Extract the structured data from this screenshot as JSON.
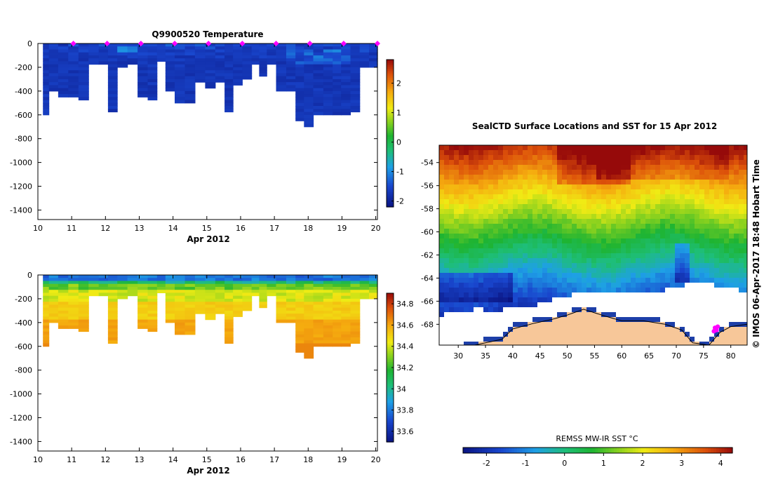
{
  "chart_data": [
    {
      "type": "heatmap",
      "title": "Q9900520  Temperature",
      "xlabel": "Apr 2012",
      "xlim": [
        10,
        20.05
      ],
      "ylim": [
        -1480,
        0
      ],
      "xticks": [
        10,
        11,
        12,
        13,
        14,
        15,
        16,
        17,
        18,
        19,
        20
      ],
      "yticks": [
        0,
        -200,
        -400,
        -600,
        -800,
        -1000,
        -1200,
        -1400
      ],
      "colorbar": {
        "range": [
          -2.2,
          2.8
        ],
        "ticks": [
          2,
          1,
          0,
          -1,
          -2
        ]
      },
      "surface_markers_day": [
        11.05,
        12.05,
        13.05,
        14.05,
        15.05,
        16.05,
        17.05,
        18.05,
        19.05,
        20.05
      ],
      "profiles": [
        {
          "day": 10.2,
          "depth": 590
        },
        {
          "day": 10.45,
          "depth": 400
        },
        {
          "day": 10.75,
          "depth": 450
        },
        {
          "day": 11.05,
          "depth": 440
        },
        {
          "day": 11.35,
          "depth": 475
        },
        {
          "day": 11.65,
          "depth": 160
        },
        {
          "day": 11.95,
          "depth": 160
        },
        {
          "day": 12.2,
          "depth": 570
        },
        {
          "day": 12.5,
          "depth": 180
        },
        {
          "day": 12.8,
          "depth": 170
        },
        {
          "day": 13.1,
          "depth": 440
        },
        {
          "day": 13.4,
          "depth": 470
        },
        {
          "day": 13.65,
          "depth": 140
        },
        {
          "day": 13.9,
          "depth": 400
        },
        {
          "day": 14.2,
          "depth": 490
        },
        {
          "day": 14.5,
          "depth": 490
        },
        {
          "day": 14.8,
          "depth": 320
        },
        {
          "day": 15.1,
          "depth": 360
        },
        {
          "day": 15.4,
          "depth": 310
        },
        {
          "day": 15.65,
          "depth": 570
        },
        {
          "day": 15.9,
          "depth": 330
        },
        {
          "day": 16.2,
          "depth": 300
        },
        {
          "day": 16.45,
          "depth": 160
        },
        {
          "day": 16.65,
          "depth": 270
        },
        {
          "day": 16.9,
          "depth": 160
        },
        {
          "day": 17.2,
          "depth": 400
        },
        {
          "day": 17.5,
          "depth": 400
        },
        {
          "day": 17.75,
          "depth": 640
        },
        {
          "day": 18.0,
          "depth": 700
        },
        {
          "day": 18.3,
          "depth": 580
        },
        {
          "day": 18.6,
          "depth": 600
        },
        {
          "day": 18.85,
          "depth": 580
        },
        {
          "day": 19.1,
          "depth": 580
        },
        {
          "day": 19.4,
          "depth": 570
        },
        {
          "day": 19.65,
          "depth": 180
        },
        {
          "day": 19.95,
          "depth": 180
        }
      ]
    },
    {
      "type": "heatmap",
      "title": "",
      "xlabel": "Apr 2012",
      "xlim": [
        10,
        20.05
      ],
      "ylim": [
        -1480,
        0
      ],
      "xticks": [
        10,
        11,
        12,
        13,
        14,
        15,
        16,
        17,
        18,
        19,
        20
      ],
      "yticks": [
        0,
        -200,
        -400,
        -600,
        -800,
        -1000,
        -1200,
        -1400
      ],
      "colorbar": {
        "range": [
          33.5,
          34.9
        ],
        "ticks": [
          34.8,
          34.6,
          34.4,
          34.2,
          34,
          33.8,
          33.6
        ]
      }
    },
    {
      "type": "heatmap",
      "title": "SealCTD Surface Locations and SST for 15 Apr 2012",
      "xlim": [
        26.5,
        83
      ],
      "ylim": [
        -69.8,
        -52.5
      ],
      "xticks": [
        30,
        35,
        40,
        45,
        50,
        55,
        60,
        65,
        70,
        75,
        80
      ],
      "yticks": [
        -54,
        -56,
        -58,
        -60,
        -62,
        -64,
        -66,
        -68
      ],
      "side_label": "© IMOS 06-Apr-2017 18:48 Hobart Time",
      "colorbar": {
        "label": "REMSS MW-IR SST °C",
        "range": [
          -2.6,
          4.3
        ],
        "ticks": [
          -2,
          -1,
          0,
          1,
          2,
          3,
          4
        ]
      },
      "seal_locations": [
        {
          "lon": 77.1,
          "lat": -68.3
        },
        {
          "lon": 77.4,
          "lat": -68.5
        },
        {
          "lon": 76.9,
          "lat": -68.6
        },
        {
          "lon": 77.6,
          "lat": -68.2
        },
        {
          "lon": 77.3,
          "lat": -68.4
        }
      ]
    }
  ]
}
